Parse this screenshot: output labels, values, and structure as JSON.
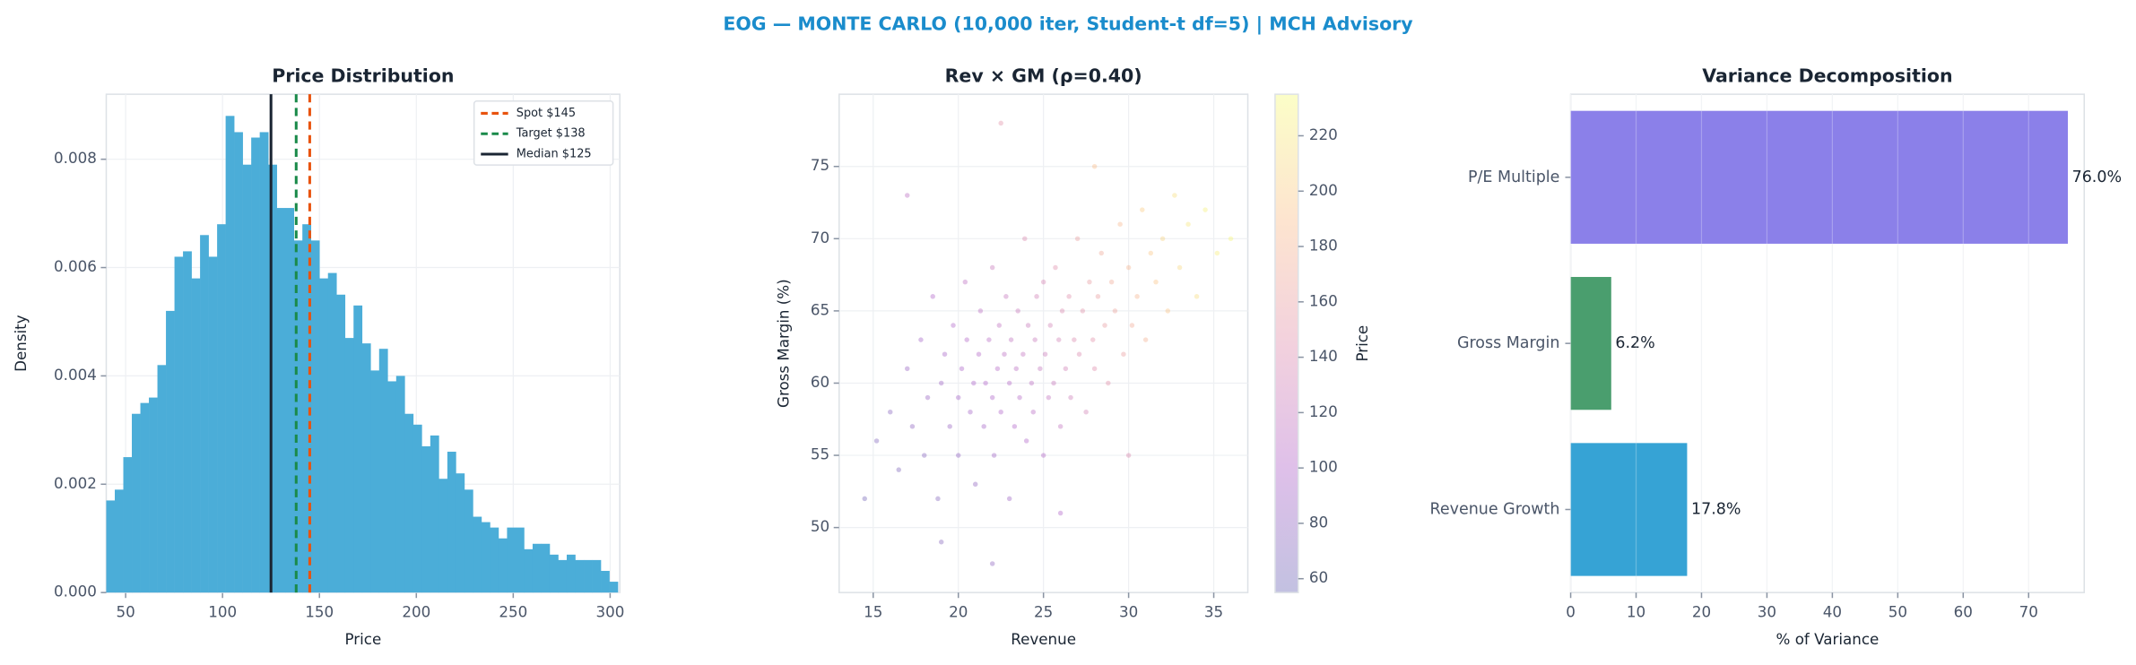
{
  "title": "EOG — MONTE CARLO (10,000 iter, Student-t df=5) | MCH Advisory",
  "chart_data": [
    {
      "type": "histogram",
      "title": "Price Distribution",
      "xlabel": "Price",
      "ylabel": "Density",
      "color": "#4badd8",
      "bins": [
        40,
        44.4,
        48.8,
        53.2,
        57.6,
        62,
        66.4,
        70.8,
        75.2,
        79.6,
        84,
        88.4,
        92.8,
        97.2,
        101.6,
        106,
        110.4,
        114.8,
        119.2,
        123.6,
        128,
        132.4,
        136.8,
        141.2,
        145.6,
        150,
        154.4,
        158.8,
        163.2,
        167.6,
        172,
        176.4,
        180.8,
        185.2,
        189.6,
        194,
        198.4,
        202.8,
        207.2,
        211.6,
        216,
        220.4,
        224.8,
        229.2,
        233.6,
        238,
        242.4,
        246.8,
        251.2,
        255.6,
        260,
        264.4,
        268.8,
        273.2,
        277.6,
        282,
        286.4,
        290.8,
        295.2,
        299.6,
        304
      ],
      "values": [
        0.0017,
        0.0019,
        0.0025,
        0.0033,
        0.0035,
        0.0036,
        0.0042,
        0.0052,
        0.0062,
        0.0063,
        0.0058,
        0.0066,
        0.0062,
        0.0068,
        0.0088,
        0.0085,
        0.0079,
        0.0084,
        0.0085,
        0.0079,
        0.0071,
        0.0071,
        0.0065,
        0.0068,
        0.0065,
        0.0058,
        0.0059,
        0.0055,
        0.0047,
        0.0053,
        0.0046,
        0.0041,
        0.0045,
        0.0039,
        0.004,
        0.0033,
        0.0031,
        0.0027,
        0.0029,
        0.0021,
        0.0026,
        0.0022,
        0.0019,
        0.0014,
        0.0013,
        0.0012,
        0.001,
        0.0012,
        0.0012,
        0.0008,
        0.0009,
        0.0009,
        0.0007,
        0.0006,
        0.0007,
        0.0006,
        0.0006,
        0.0006,
        0.0004,
        0.0002
      ],
      "xlim": [
        40,
        305
      ],
      "xticks": [
        50,
        100,
        150,
        200,
        250,
        300
      ],
      "ylim": [
        0,
        0.0092
      ],
      "yticks": [
        {
          "value": 0,
          "label": "0.000"
        },
        0.002,
        0.004,
        0.006,
        0.008
      ],
      "vlines": [
        {
          "name": "Spot $145",
          "value": 145,
          "color": "#e8530e",
          "dash": true
        },
        {
          "name": "Target $138",
          "value": 138,
          "color": "#1a8a4a",
          "dash": true
        },
        {
          "name": "Median $125",
          "value": 125,
          "color": "#1a2533",
          "dash": false
        }
      ],
      "legend": "upper right",
      "grid": true
    },
    {
      "type": "scatter",
      "title": "Rev × GM (ρ=0.40)",
      "xlabel": "Revenue",
      "ylabel": "Gross Margin (%)",
      "clabel": "Price",
      "x": [
        14.5,
        15.2,
        16,
        16.5,
        17,
        17.3,
        17.8,
        18,
        18.2,
        18.5,
        18.8,
        19,
        19.2,
        19.5,
        19.7,
        20,
        20,
        20.2,
        20.4,
        20.5,
        20.7,
        20.9,
        21,
        21.2,
        21.3,
        21.5,
        21.6,
        21.8,
        22,
        22,
        22.1,
        22.3,
        22.4,
        22.5,
        22.7,
        22.8,
        23,
        23,
        23.1,
        23.3,
        23.4,
        23.5,
        23.6,
        23.8,
        23.9,
        24,
        24.1,
        24.3,
        24.4,
        24.5,
        24.6,
        24.8,
        25,
        25,
        25.1,
        25.3,
        25.4,
        25.6,
        25.7,
        25.9,
        26,
        26.1,
        26.3,
        26.5,
        26.6,
        26.8,
        27,
        27.1,
        27.3,
        27.5,
        27.7,
        27.9,
        28,
        28.2,
        28.4,
        28.6,
        28.8,
        29,
        29.2,
        29.5,
        29.7,
        30,
        30.2,
        30.5,
        30.8,
        31,
        31.3,
        31.6,
        32,
        32.3,
        32.7,
        33,
        33.5,
        34,
        34.5,
        35.2,
        36,
        22,
        19,
        28,
        22.5,
        17,
        26,
        30
      ],
      "values": [
        52,
        56,
        58,
        54,
        61,
        57,
        63,
        55,
        59,
        66,
        52,
        60,
        62,
        57,
        64,
        59,
        55,
        61,
        67,
        63,
        58,
        60,
        53,
        62,
        65,
        57,
        60,
        63,
        59,
        68,
        55,
        61,
        64,
        58,
        62,
        66,
        60,
        52,
        63,
        57,
        61,
        65,
        59,
        62,
        70,
        56,
        64,
        60,
        58,
        63,
        66,
        61,
        55,
        67,
        62,
        59,
        64,
        60,
        68,
        63,
        57,
        65,
        61,
        66,
        59,
        63,
        70,
        62,
        65,
        58,
        67,
        63,
        61,
        66,
        69,
        64,
        60,
        67,
        65,
        71,
        62,
        68,
        64,
        66,
        72,
        63,
        69,
        67,
        70,
        65,
        73,
        68,
        71,
        66,
        72,
        69,
        70,
        47.5,
        49,
        75,
        78,
        73,
        51,
        55
      ],
      "color_values": [
        62,
        70,
        75,
        68,
        85,
        78,
        92,
        75,
        85,
        100,
        72,
        90,
        95,
        85,
        102,
        92,
        82,
        98,
        112,
        104,
        92,
        97,
        80,
        104,
        110,
        92,
        100,
        108,
        99,
        122,
        90,
        106,
        114,
        100,
        110,
        120,
        106,
        88,
        115,
        100,
        110,
        122,
        106,
        116,
        140,
        100,
        122,
        112,
        108,
        122,
        130,
        118,
        104,
        136,
        124,
        116,
        132,
        122,
        145,
        132,
        116,
        140,
        130,
        146,
        126,
        140,
        162,
        140,
        150,
        132,
        158,
        148,
        144,
        160,
        170,
        158,
        148,
        172,
        166,
        185,
        160,
        182,
        172,
        182,
        200,
        178,
        196,
        194,
        205,
        195,
        215,
        210,
        220,
        212,
        228,
        225,
        230,
        78,
        74,
        190,
        150,
        110,
        100,
        140
      ],
      "xlim": [
        13,
        37
      ],
      "xticks": [
        15,
        20,
        25,
        30,
        35
      ],
      "ylim": [
        45.5,
        80
      ],
      "yticks": [
        50,
        55,
        60,
        65,
        70,
        75
      ],
      "clim": [
        55,
        235
      ],
      "cticks": [
        60,
        80,
        100,
        120,
        140,
        160,
        180,
        200,
        220
      ],
      "colormap": [
        "#0d0887",
        "#7e03a8",
        "#cc4778",
        "#f89540",
        "#f0f921"
      ],
      "alpha": 0.25,
      "grid": true
    },
    {
      "type": "hbar",
      "title": "Variance Decomposition",
      "xlabel": "% of Variance",
      "categories": [
        "P/E Multiple",
        "Gross Margin",
        "Revenue Growth"
      ],
      "values": [
        76.0,
        6.2,
        17.8
      ],
      "value_labels": [
        "76.0%",
        "6.2%",
        "17.8%"
      ],
      "colors": [
        "#8b80e9",
        "#4a9e6e",
        "#36a3d5"
      ],
      "xlim": [
        0,
        78.5
      ],
      "xticks": [
        0,
        10,
        20,
        30,
        40,
        50,
        60,
        70
      ],
      "grid": true
    }
  ]
}
